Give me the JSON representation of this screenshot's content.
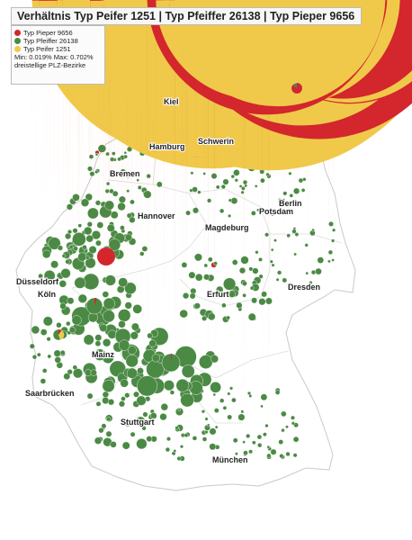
{
  "title": "Verhältnis Typ Peifer 1251 | Typ Pfeiffer 26138 | Typ Pieper 9656",
  "legend": {
    "items": [
      {
        "label": "Typ Pieper 9656",
        "color": "#d3262d"
      },
      {
        "label": "Typ Pfeiffer 26138",
        "color": "#4b8a45"
      },
      {
        "label": "Typ Peifer 1251",
        "color": "#f0c94a"
      }
    ],
    "range": "Min: 0.019% Max: 0.702%",
    "unit": "dreistellige PLZ-Bezirke"
  },
  "colors": {
    "pieper": "#d3262d",
    "pfeiffer": "#4b8a45",
    "peifer": "#f0c94a",
    "border": "#c9c9c9",
    "background": "#ffffff"
  },
  "cities": {
    "kiel": "Kiel",
    "hamburg": "Hamburg",
    "schwerin": "Schwerin",
    "bremen": "Bremen",
    "berlin": "Berlin",
    "potsdam": "Potsdam",
    "hannover": "Hannover",
    "magdeburg": "Magdeburg",
    "duesseldorf": "Düsseldorf",
    "koeln": "Köln",
    "erfurt": "Erfurt",
    "dresden": "Dresden",
    "mainz": "Mainz",
    "saarbruecken": "Saarbrücken",
    "stuttgart": "Stuttgart",
    "muenchen": "München"
  },
  "symbols": "pie chart per three-digit postal district, size by share"
}
